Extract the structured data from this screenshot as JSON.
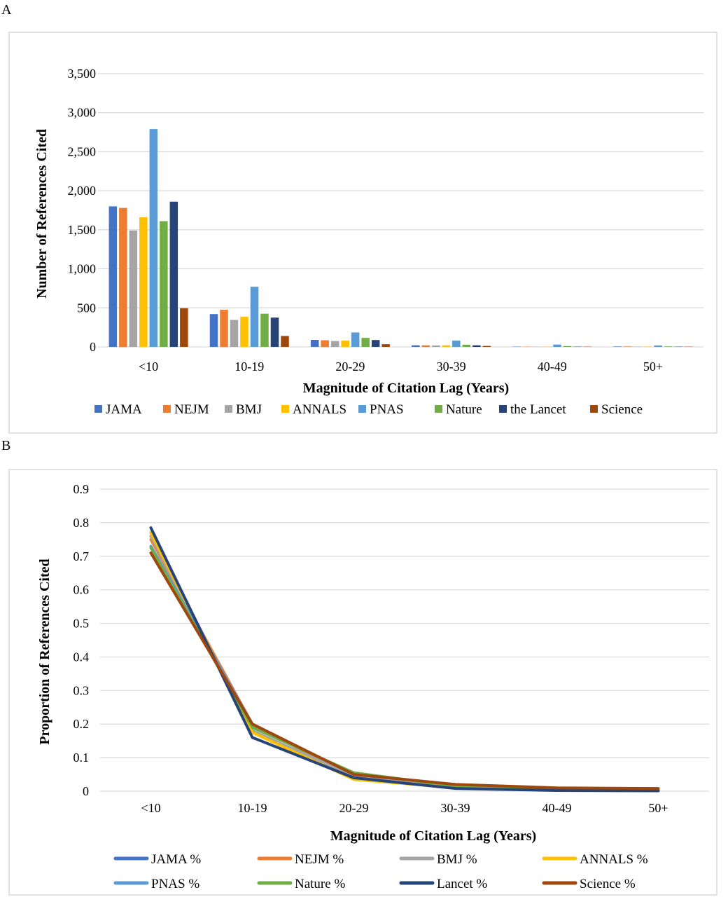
{
  "chart_data": [
    {
      "panel_label": "A",
      "type": "bar",
      "xlabel": "Magnitude of Citation Lag (Years)",
      "ylabel": "Number of References Cited",
      "ylim": [
        0,
        3500
      ],
      "y_ticks": [
        "0",
        "500",
        "1,000",
        "1,500",
        "2,000",
        "2,500",
        "3,000",
        "3,500"
      ],
      "y_tick_values": [
        0,
        500,
        1000,
        1500,
        2000,
        2500,
        3000,
        3500
      ],
      "grid": true,
      "legend_position": "bottom",
      "categories": [
        "<10",
        "10-19",
        "20-29",
        "30-39",
        "40-49",
        "50+"
      ],
      "series": [
        {
          "name": "JAMA",
          "color": "#4472C4",
          "values": [
            1800,
            420,
            90,
            20,
            3,
            5
          ]
        },
        {
          "name": "NEJM",
          "color": "#ED7D31",
          "values": [
            1780,
            475,
            85,
            20,
            3,
            5
          ]
        },
        {
          "name": "BMJ",
          "color": "#A5A5A5",
          "values": [
            1490,
            345,
            75,
            18,
            2,
            3
          ]
        },
        {
          "name": "ANNALS",
          "color": "#FFC000",
          "values": [
            1660,
            385,
            80,
            20,
            2,
            3
          ]
        },
        {
          "name": "PNAS",
          "color": "#5B9BD5",
          "values": [
            2790,
            770,
            185,
            80,
            30,
            18
          ]
        },
        {
          "name": "Nature",
          "color": "#70AD47",
          "values": [
            1610,
            425,
            115,
            28,
            10,
            6
          ]
        },
        {
          "name": "the Lancet",
          "color": "#264478",
          "values": [
            1860,
            375,
            88,
            20,
            3,
            3
          ]
        },
        {
          "name": "Science",
          "color": "#9E480E",
          "values": [
            495,
            140,
            35,
            12,
            3,
            3
          ]
        }
      ]
    },
    {
      "panel_label": "B",
      "type": "line",
      "xlabel": "Magnitude of Citation Lag (Years)",
      "ylabel": "Proportion of References Cited",
      "ylim": [
        0,
        0.9
      ],
      "y_ticks": [
        "0",
        "0.1",
        "0.2",
        "0.3",
        "0.4",
        "0.5",
        "0.6",
        "0.7",
        "0.8",
        "0.9"
      ],
      "y_tick_values": [
        0,
        0.1,
        0.2,
        0.3,
        0.4,
        0.5,
        0.6,
        0.7,
        0.8,
        0.9
      ],
      "grid": true,
      "legend_position": "bottom",
      "categories": [
        "<10",
        "10-19",
        "20-29",
        "30-39",
        "40-49",
        "50+"
      ],
      "series": [
        {
          "name": "JAMA %",
          "color": "#4472C4",
          "values": [
            0.77,
            0.18,
            0.04,
            0.012,
            0.003,
            0.002
          ]
        },
        {
          "name": "NEJM %",
          "color": "#ED7D31",
          "values": [
            0.75,
            0.2,
            0.04,
            0.012,
            0.004,
            0.003
          ]
        },
        {
          "name": "BMJ %",
          "color": "#A5A5A5",
          "values": [
            0.76,
            0.18,
            0.045,
            0.013,
            0.003,
            0.002
          ]
        },
        {
          "name": "ANNALS %",
          "color": "#FFC000",
          "values": [
            0.77,
            0.175,
            0.035,
            0.01,
            0.003,
            0.002
          ]
        },
        {
          "name": "PNAS %",
          "color": "#5B9BD5",
          "values": [
            0.73,
            0.2,
            0.05,
            0.02,
            0.008,
            0.005
          ]
        },
        {
          "name": "Nature %",
          "color": "#70AD47",
          "values": [
            0.725,
            0.19,
            0.055,
            0.015,
            0.005,
            0.003
          ]
        },
        {
          "name": "Lancet %",
          "color": "#264478",
          "values": [
            0.785,
            0.16,
            0.04,
            0.008,
            0.002,
            0.001
          ]
        },
        {
          "name": "Science %",
          "color": "#9E480E",
          "values": [
            0.71,
            0.2,
            0.05,
            0.02,
            0.01,
            0.008
          ]
        }
      ]
    }
  ]
}
